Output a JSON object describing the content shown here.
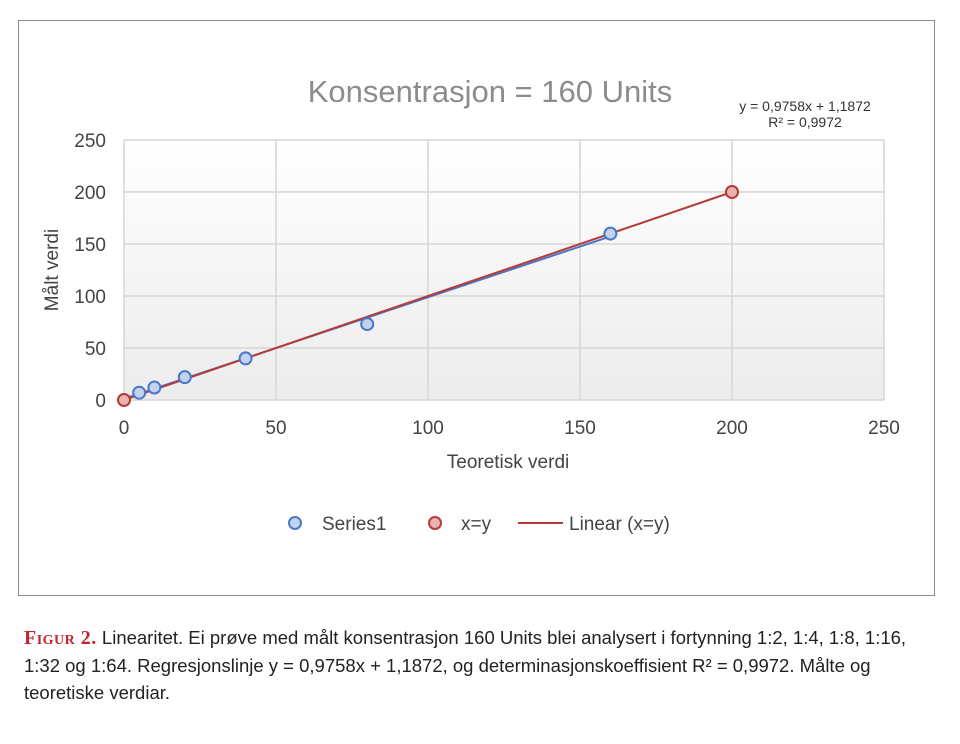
{
  "chart_data": {
    "type": "scatter",
    "title": "Konsentrasjon = 160 Units",
    "xlabel": "Teoretisk verdi",
    "ylabel": "Målt verdi",
    "xlim": [
      0,
      250
    ],
    "ylim": [
      0,
      250
    ],
    "xticks": [
      0,
      50,
      100,
      150,
      200,
      250
    ],
    "yticks": [
      0,
      50,
      100,
      150,
      200,
      250
    ],
    "grid": true,
    "legend_position": "bottom",
    "series": [
      {
        "name": "Series1",
        "type": "scatter",
        "color": "#4a78c8",
        "fill": "#c3d3ee",
        "x": [
          5,
          10,
          20,
          40,
          80,
          160
        ],
        "y": [
          7,
          12,
          22,
          40,
          73,
          160
        ]
      },
      {
        "name": "x=y",
        "type": "scatter",
        "color": "#b83a38",
        "fill": "#e8b4b2",
        "x": [
          0,
          200
        ],
        "y": [
          0,
          200
        ]
      },
      {
        "name": "Linear (x=y)",
        "type": "line",
        "color": "#b83a38",
        "x": [
          0,
          200
        ],
        "y": [
          0,
          200
        ]
      }
    ],
    "series1_trendline": {
      "color": "#4a78c8",
      "slope": 0.9758,
      "intercept": 1.1872,
      "x": [
        0,
        160
      ]
    },
    "annotation": {
      "equation": "y = 0,9758x + 1,1872",
      "r2": "R² = 0,9972"
    }
  },
  "caption": {
    "label": "Figur 2.",
    "text": " Linearitet. Ei prøve med målt konsentrasjon 160 Units blei analysert i fortynning 1:2, 1:4, 1:8, 1:16, 1:32 og 1:64. Regresjonslinje y = 0,9758x + 1,1872, og determinasjonskoeffisient R² = 0,9972. Målte og teoretiske verdiar."
  }
}
